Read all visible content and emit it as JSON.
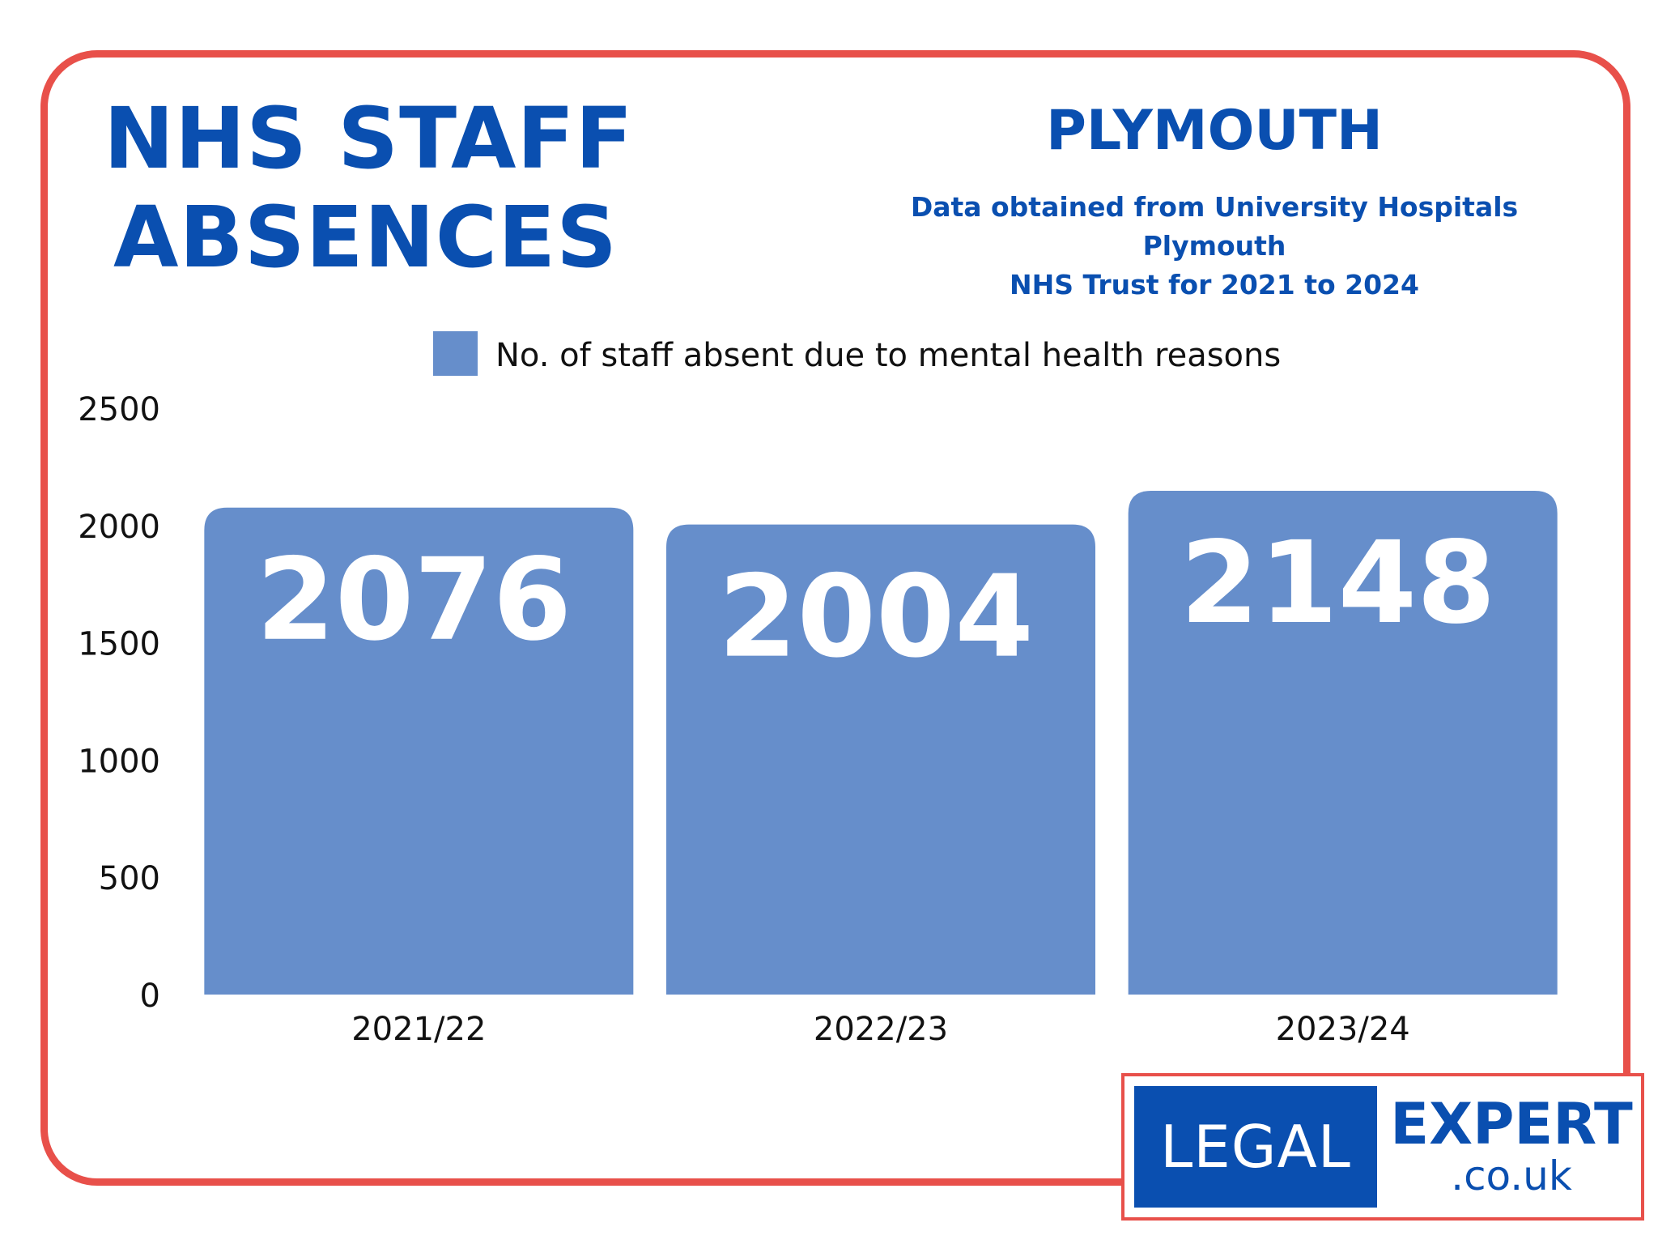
{
  "header": {
    "title_line1": "NHS STAFF",
    "title_line2": "ABSENCES",
    "place": "PLYMOUTH",
    "source_line1": "Data obtained from University Hospitals Plymouth",
    "source_line2": "NHS Trust for 2021 to 2024"
  },
  "logo": {
    "left_text": "LEGAL",
    "right_text": "EXPERT",
    "domain_text": ".co.uk"
  },
  "colors": {
    "frame": "#e8504a",
    "brand_blue": "#0a4fb0",
    "bar": "#668ecb"
  },
  "chart_data": {
    "type": "bar",
    "categories": [
      "2021/22",
      "2022/23",
      "2023/24"
    ],
    "series": [
      {
        "name": "No. of staff absent due to mental health reasons",
        "values": [
          2076,
          2004,
          2148
        ]
      }
    ],
    "data_labels": [
      "2076",
      "2004",
      "2148"
    ],
    "y_ticks": [
      "0",
      "500",
      "1000",
      "1500",
      "2000",
      "2500"
    ],
    "ylim": [
      0,
      2500
    ],
    "legend_position": "top-center",
    "grid": false
  }
}
